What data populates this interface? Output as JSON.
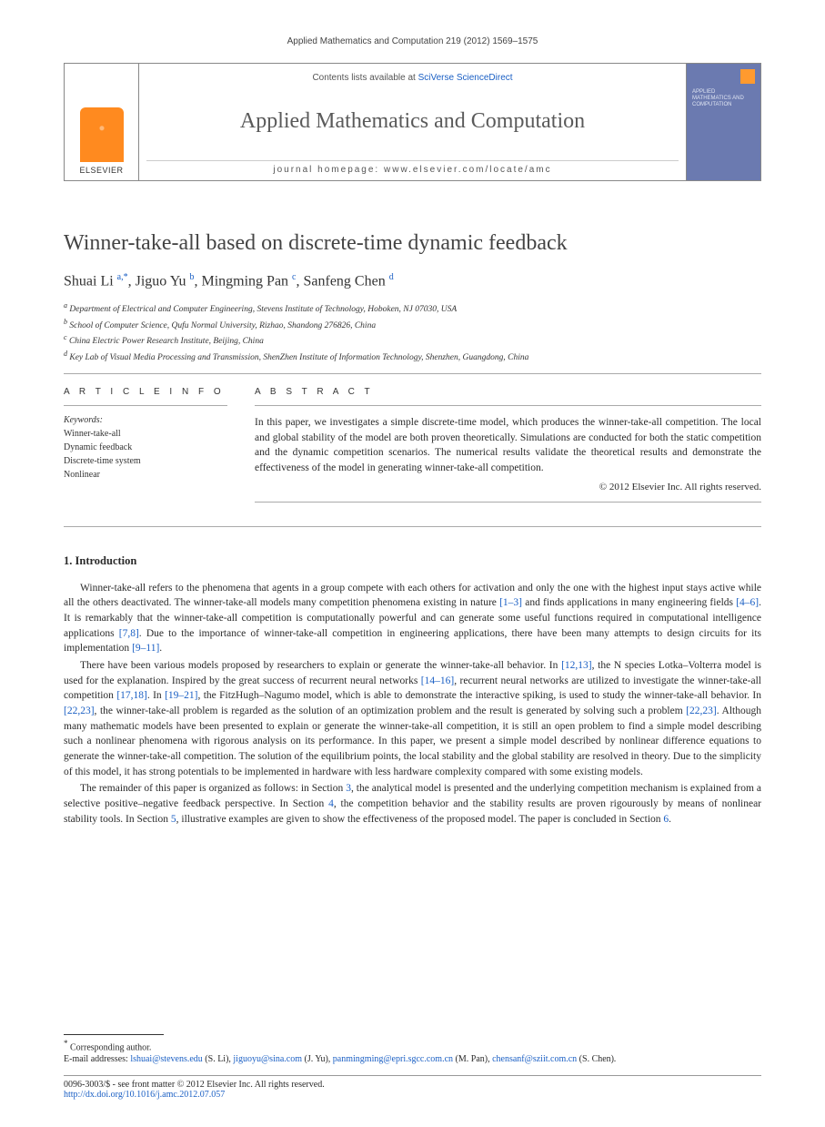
{
  "running_head": "Applied Mathematics and Computation 219 (2012) 1569–1575",
  "header": {
    "contents_prefix": "Contents lists available at ",
    "contents_link": "SciVerse ScienceDirect",
    "journal_title": "Applied Mathematics and Computation",
    "homepage_prefix": "journal homepage: ",
    "homepage_url": "www.elsevier.com/locate/amc",
    "publisher_label": "ELSEVIER",
    "cover_text": "APPLIED MATHEMATICS AND COMPUTATION"
  },
  "article": {
    "title": "Winner-take-all based on discrete-time dynamic feedback",
    "authors_html": "Shuai Li <sup><a>a,</a>*</sup>, Jiguo Yu <sup><a>b</a></sup>, Mingming Pan <sup><a>c</a></sup>, Sanfeng Chen <sup><a>d</a></sup>",
    "affiliations": [
      "Department of Electrical and Computer Engineering, Stevens Institute of Technology, Hoboken, NJ 07030, USA",
      "School of Computer Science, Qufu Normal University, Rizhao, Shandong 276826, China",
      "China Electric Power Research Institute, Beijing, China",
      "Key Lab of Visual Media Processing and Transmission, ShenZhen Institute of Information Technology, Shenzhen, Guangdong, China"
    ],
    "aff_markers": [
      "a",
      "b",
      "c",
      "d"
    ]
  },
  "info": {
    "label": "A R T I C L E   I N F O",
    "keywords_label": "Keywords:",
    "keywords": [
      "Winner-take-all",
      "Dynamic feedback",
      "Discrete-time system",
      "Nonlinear"
    ]
  },
  "abstract": {
    "label": "A B S T R A C T",
    "text": "In this paper, we investigates a simple discrete-time model, which produces the winner-take-all competition. The local and global stability of the model are both proven theoretically. Simulations are conducted for both the static competition and the dynamic competition scenarios. The numerical results validate the theoretical results and demonstrate the effectiveness of the model in generating winner-take-all competition.",
    "copyright": "© 2012 Elsevier Inc. All rights reserved."
  },
  "sections": {
    "intro_heading": "1. Introduction",
    "para1": "Winner-take-all refers to the phenomena that agents in a group compete with each others for activation and only the one with the highest input stays active while all the others deactivated. The winner-take-all models many competition phenomena existing in nature [1–3] and finds applications in many engineering fields [4–6]. It is remarkably that the winner-take-all competition is computationally powerful and can generate some useful functions required in computational intelligence applications [7,8]. Due to the importance of winner-take-all competition in engineering applications, there have been many attempts to design circuits for its implementation [9–11].",
    "para2": "There have been various models proposed by researchers to explain or generate the winner-take-all behavior. In [12,13], the N species Lotka–Volterra model is used for the explanation. Inspired by the great success of recurrent neural networks [14–16], recurrent neural networks are utilized to investigate the winner-take-all competition [17,18]. In [19–21], the FitzHugh–Nagumo model, which is able to demonstrate the interactive spiking, is used to study the winner-take-all behavior. In [22,23], the winner-take-all problem is regarded as the solution of an optimization problem and the result is generated by solving such a problem [22,23]. Although many mathematic models have been presented to explain or generate the winner-take-all competition, it is still an open problem to find a simple model describing such a nonlinear phenomena with rigorous analysis on its performance. In this paper, we present a simple model described by nonlinear difference equations to generate the winner-take-all competition. The solution of the equilibrium points, the local stability and the global stability are resolved in theory. Due to the simplicity of this model, it has strong potentials to be implemented in hardware with less hardware complexity compared with some existing models.",
    "para3": "The remainder of this paper is organized as follows: in Section 3, the analytical model is presented and the underlying competition mechanism is explained from a selective positive–negative feedback perspective. In Section 4, the competition behavior and the stability results are proven rigourously by means of nonlinear stability tools. In Section 5, illustrative examples are given to show the effectiveness of the proposed model. The paper is concluded in Section 6."
  },
  "footer": {
    "corr": "Corresponding author.",
    "emails_label": "E-mail addresses:",
    "emails": [
      {
        "addr": "lshuai@stevens.edu",
        "name": "(S. Li)"
      },
      {
        "addr": "jiguoyu@sina.com",
        "name": "(J. Yu)"
      },
      {
        "addr": "panmingming@epri.sgcc.com.cn",
        "name": "(M. Pan)"
      },
      {
        "addr": "chensanf@sziit.com.cn",
        "name": "(S. Chen)"
      }
    ],
    "issn": "0096-3003/$ - see front matter © 2012 Elsevier Inc. All rights reserved.",
    "doi_url": "http://dx.doi.org/10.1016/j.amc.2012.07.057"
  },
  "colors": {
    "link": "#1a5fc4",
    "elsevier_orange": "#ff8a1f",
    "cover_bg": "#6b7ab0",
    "text": "#2a2a2a",
    "rule": "#aaaaaa"
  },
  "citations": {
    "p1": [
      "[1–3]",
      "[4–6]",
      "[7,8]",
      "[9–11]"
    ],
    "p2": [
      "[12,13]",
      "[14–16]",
      "[17,18]",
      "[19–21]",
      "[22,23]",
      "[22,23]"
    ],
    "p3_sections": [
      "3",
      "4",
      "5",
      "6"
    ]
  }
}
